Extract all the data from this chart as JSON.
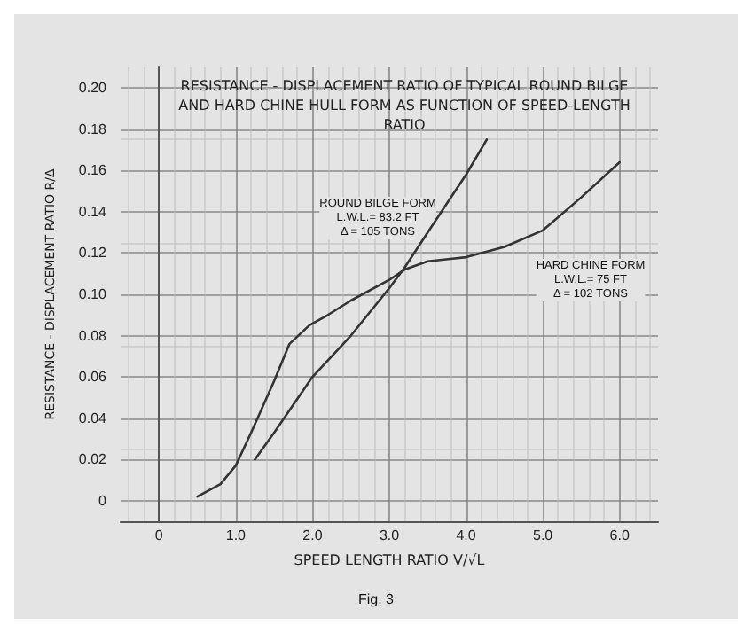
{
  "chart_data": {
    "type": "line",
    "title": "RESISTANCE - DISPLACEMENT RATIO OF TYPICAL ROUND BILGE\nAND HARD CHINE HULL FORM AS FUNCTION OF SPEED-LENGTH\nRATIO",
    "xlabel": "SPEED LENGTH RATIO V/√L",
    "ylabel": "RESISTANCE - DISPLACEMENT RATIO R/Δ",
    "series": [
      {
        "color": "#333333",
        "x": [
          1.25,
          1.5,
          2.0,
          2.5,
          3.0,
          3.2,
          3.5,
          4.0,
          4.27
        ],
        "values": [
          0.02,
          0.033,
          0.06,
          0.08,
          0.103,
          0.113,
          0.13,
          0.158,
          0.175
        ]
      },
      {
        "color": "#333333",
        "x": [
          0.5,
          0.8,
          1.0,
          1.2,
          1.5,
          1.7,
          1.96,
          2.2,
          2.5,
          3.0,
          3.2,
          3.5,
          4.0,
          4.5,
          5.0,
          5.5,
          6.0
        ],
        "values": [
          0.002,
          0.008,
          0.017,
          0.033,
          0.058,
          0.076,
          0.085,
          0.09,
          0.097,
          0.107,
          0.112,
          0.116,
          0.118,
          0.123,
          0.131,
          0.147,
          0.164
        ]
      }
    ],
    "xlim": [
      -0.5,
      6.5
    ],
    "ylim": [
      -0.01,
      0.21
    ],
    "xticks": [
      0,
      {
        "value": 1,
        "label": "1.0"
      },
      {
        "value": 2,
        "label": "2.0"
      },
      {
        "value": 3,
        "label": "3.0"
      },
      {
        "value": 4,
        "label": "4.0"
      },
      {
        "value": 5,
        "label": "5.0"
      },
      {
        "value": 6,
        "label": "6.0"
      }
    ],
    "yticks": [
      0,
      0.02,
      0.04,
      0.06,
      0.08,
      {
        "value": 0.1,
        "label": "0.10"
      },
      0.12,
      0.14,
      0.16,
      0.18,
      {
        "value": 0.2,
        "label": "0.20"
      }
    ],
    "grid": true,
    "marker": "none",
    "line_style": "solid",
    "annotations": [
      "ROUND BILGE FORM\nL.W.L.= 83.2 FT\nΔ = 105 TONS",
      "HARD CHINE FORM\nL.W.L.= 75 FT\nΔ = 102 TONS",
      "Fig. 3"
    ]
  }
}
